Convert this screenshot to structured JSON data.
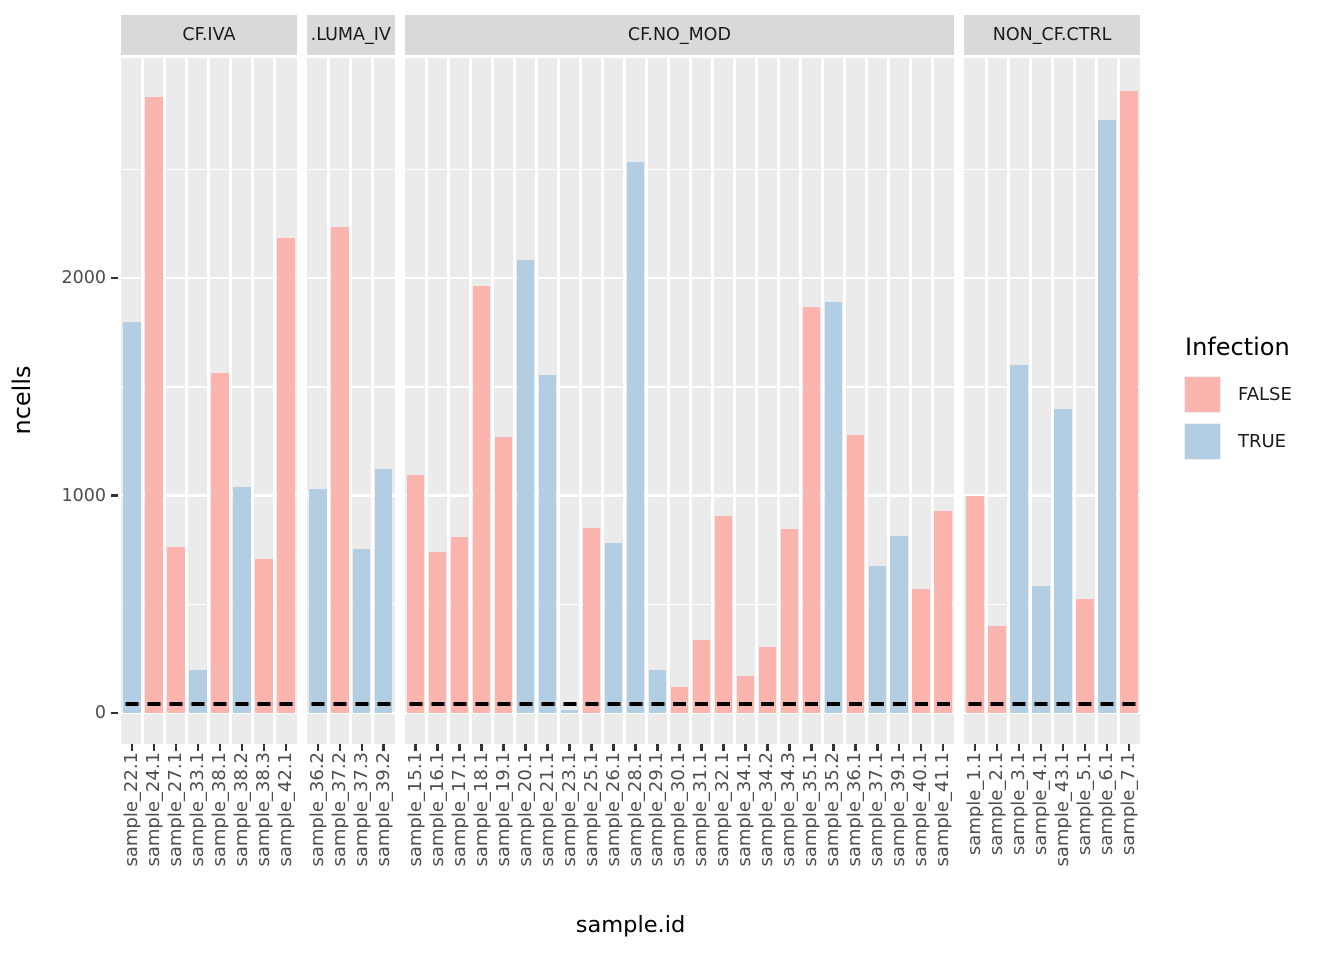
{
  "chart_data": {
    "type": "bar",
    "title": "",
    "xlabel": "sample.id",
    "ylabel": "ncells",
    "ylim": [
      0,
      3000
    ],
    "yticks": [
      0,
      1000,
      2000
    ],
    "y_major_gridlines": [
      0,
      1000,
      2000
    ],
    "y_minor_gridlines": [
      500,
      1500,
      2500
    ],
    "grid": "on",
    "legend_position": "right",
    "legend": {
      "title": "Infection",
      "entries": [
        {
          "label": "FALSE",
          "color": "#FBB4AE"
        },
        {
          "label": "TRUE",
          "color": "#B3CDE3"
        }
      ]
    },
    "series_colors": {
      "FALSE": "#FBB4AE",
      "TRUE": "#B3CDE3"
    },
    "threshold_line": {
      "y": 40,
      "style": "dashed",
      "color": "#000000"
    },
    "theme": {
      "panel_bg": "#EBEBEB",
      "strip_bg": "#D9D9D9",
      "grid_color": "#FFFFFF",
      "axis_text_color": "#4D4D4D",
      "tick_mark_color": "#333333"
    },
    "facets": [
      {
        "label": "CF.IVA",
        "bars": [
          {
            "x": "sample_22.1",
            "infection": "TRUE",
            "ncells": 1800
          },
          {
            "x": "sample_24.1",
            "infection": "FALSE",
            "ncells": 2830
          },
          {
            "x": "sample_27.1",
            "infection": "FALSE",
            "ncells": 765
          },
          {
            "x": "sample_33.1",
            "infection": "TRUE",
            "ncells": 200
          },
          {
            "x": "sample_38.1",
            "infection": "FALSE",
            "ncells": 1565
          },
          {
            "x": "sample_38.2",
            "infection": "TRUE",
            "ncells": 1040
          },
          {
            "x": "sample_38.3",
            "infection": "FALSE",
            "ncells": 710
          },
          {
            "x": "sample_42.1",
            "infection": "FALSE",
            "ncells": 2185
          }
        ]
      },
      {
        "label": ".LUMA_IV",
        "bars": [
          {
            "x": "sample_36.2",
            "infection": "TRUE",
            "ncells": 1030
          },
          {
            "x": "sample_37.2",
            "infection": "FALSE",
            "ncells": 2235
          },
          {
            "x": "sample_37.3",
            "infection": "TRUE",
            "ncells": 755
          },
          {
            "x": "sample_39.2",
            "infection": "TRUE",
            "ncells": 1120
          }
        ]
      },
      {
        "label": "CF.NO_MOD",
        "bars": [
          {
            "x": "sample_15.1",
            "infection": "FALSE",
            "ncells": 1095
          },
          {
            "x": "sample_16.1",
            "infection": "FALSE",
            "ncells": 740
          },
          {
            "x": "sample_17.1",
            "infection": "FALSE",
            "ncells": 810
          },
          {
            "x": "sample_18.1",
            "infection": "FALSE",
            "ncells": 1965
          },
          {
            "x": "sample_19.1",
            "infection": "FALSE",
            "ncells": 1270
          },
          {
            "x": "sample_20.1",
            "infection": "TRUE",
            "ncells": 2085
          },
          {
            "x": "sample_21.1",
            "infection": "TRUE",
            "ncells": 1555
          },
          {
            "x": "sample_23.1",
            "infection": "TRUE",
            "ncells": 15
          },
          {
            "x": "sample_25.1",
            "infection": "FALSE",
            "ncells": 850
          },
          {
            "x": "sample_26.1",
            "infection": "TRUE",
            "ncells": 780
          },
          {
            "x": "sample_28.1",
            "infection": "TRUE",
            "ncells": 2535
          },
          {
            "x": "sample_29.1",
            "infection": "TRUE",
            "ncells": 200
          },
          {
            "x": "sample_30.1",
            "infection": "FALSE",
            "ncells": 120
          },
          {
            "x": "sample_31.1",
            "infection": "FALSE",
            "ncells": 335
          },
          {
            "x": "sample_32.1",
            "infection": "FALSE",
            "ncells": 905
          },
          {
            "x": "sample_34.1",
            "infection": "FALSE",
            "ncells": 170
          },
          {
            "x": "sample_34.2",
            "infection": "FALSE",
            "ncells": 305
          },
          {
            "x": "sample_34.3",
            "infection": "FALSE",
            "ncells": 845
          },
          {
            "x": "sample_35.1",
            "infection": "FALSE",
            "ncells": 1865
          },
          {
            "x": "sample_35.2",
            "infection": "TRUE",
            "ncells": 1890
          },
          {
            "x": "sample_36.1",
            "infection": "FALSE",
            "ncells": 1280
          },
          {
            "x": "sample_37.1",
            "infection": "TRUE",
            "ncells": 675
          },
          {
            "x": "sample_39.1",
            "infection": "TRUE",
            "ncells": 815
          },
          {
            "x": "sample_40.1",
            "infection": "FALSE",
            "ncells": 570
          },
          {
            "x": "sample_41.1",
            "infection": "FALSE",
            "ncells": 930
          }
        ]
      },
      {
        "label": "NON_CF.CTRL",
        "bars": [
          {
            "x": "sample_1.1",
            "infection": "FALSE",
            "ncells": 1000
          },
          {
            "x": "sample_2.1",
            "infection": "FALSE",
            "ncells": 400
          },
          {
            "x": "sample_3.1",
            "infection": "TRUE",
            "ncells": 1600
          },
          {
            "x": "sample_4.1",
            "infection": "TRUE",
            "ncells": 585
          },
          {
            "x": "sample_43.1",
            "infection": "TRUE",
            "ncells": 1400
          },
          {
            "x": "sample_5.1",
            "infection": "FALSE",
            "ncells": 525
          },
          {
            "x": "sample_6.1",
            "infection": "TRUE",
            "ncells": 2725
          },
          {
            "x": "sample_7.1",
            "infection": "FALSE",
            "ncells": 2860
          }
        ]
      }
    ]
  }
}
